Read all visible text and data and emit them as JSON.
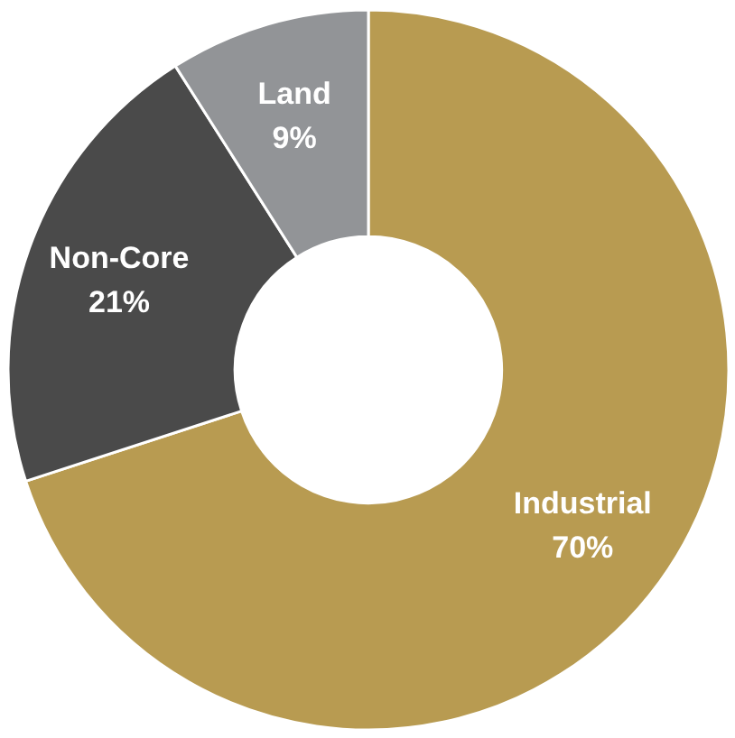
{
  "chart_data": {
    "type": "donut",
    "categories": [
      "Industrial",
      "Non-Core",
      "Land"
    ],
    "values": [
      70,
      21,
      9
    ],
    "colors": [
      "#b89b51",
      "#4a4a4a",
      "#929497"
    ],
    "value_labels": [
      "70%",
      "21%",
      "9%"
    ]
  }
}
